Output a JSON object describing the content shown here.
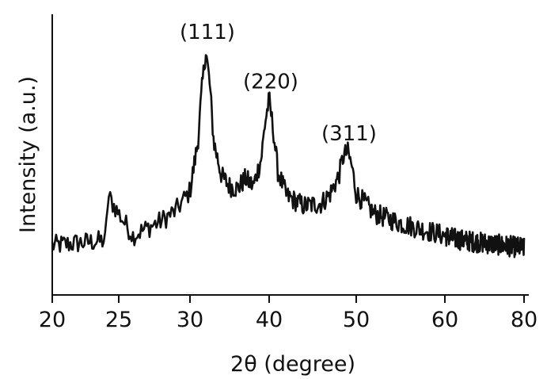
{
  "chart_data": {
    "type": "line",
    "xlabel": "2θ (degree)",
    "ylabel": "Intensity (a.u.)",
    "x_ticks": [
      20,
      25,
      30,
      40,
      50,
      60,
      80
    ],
    "ylim": [
      0,
      1
    ],
    "grid": false,
    "legend": "none",
    "line_color": "#111111",
    "series": [
      {
        "x": [
          20,
          22,
          24,
          24.2,
          26,
          28,
          29,
          30,
          31,
          31.5,
          32,
          32.5,
          33,
          34,
          35,
          36,
          37,
          38,
          39,
          39.5,
          40,
          40.5,
          41,
          42,
          44,
          46,
          47,
          48,
          48.5,
          49,
          49.5,
          50,
          52,
          55,
          58,
          60,
          62,
          65,
          70,
          75,
          80
        ],
        "y": [
          0.2,
          0.21,
          0.22,
          0.4,
          0.24,
          0.3,
          0.34,
          0.42,
          0.62,
          0.83,
          0.99,
          0.85,
          0.62,
          0.48,
          0.44,
          0.43,
          0.47,
          0.44,
          0.55,
          0.7,
          0.79,
          0.66,
          0.5,
          0.4,
          0.36,
          0.37,
          0.41,
          0.48,
          0.56,
          0.58,
          0.52,
          0.41,
          0.33,
          0.29,
          0.26,
          0.24,
          0.23,
          0.22,
          0.21,
          0.2,
          0.19
        ]
      }
    ],
    "peak_labels": [
      {
        "text": "(111)",
        "x": 32,
        "y": 0.99
      },
      {
        "text": "(220)",
        "x": 40,
        "y": 0.79
      },
      {
        "text": "(311)",
        "x": 49,
        "y": 0.58
      }
    ]
  }
}
